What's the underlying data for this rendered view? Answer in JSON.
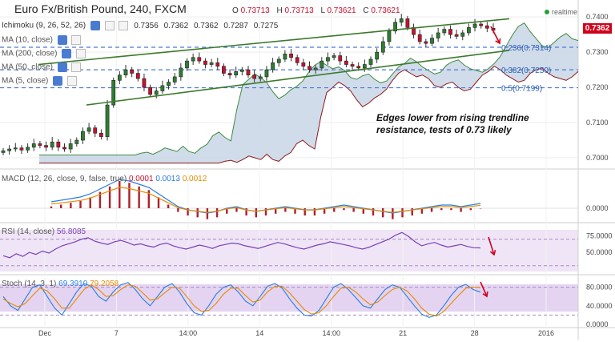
{
  "header": {
    "title": "Euro Fx/British Pound, 240, FXCM",
    "open_label": "O",
    "open": "0.73713",
    "high_label": "H",
    "high": "0.73713",
    "low_label": "L",
    "low": "0.73621",
    "close_label": "C",
    "close": "0.73621",
    "realtime_label": "realtime",
    "price_tag": "0.7362"
  },
  "indicators": {
    "ichimoku": {
      "label": "Ichimoku (9, 26, 52, 26)",
      "values": [
        "0.7356",
        "0.7362",
        "0.7362",
        "0.7287",
        "0.7275"
      ]
    },
    "ma10": "MA (10, close)",
    "ma200": "MA (200, close)",
    "ma50": "MA (50, close)",
    "ma5": "MA (5, close)"
  },
  "annotation": "Edges lower from rising trendline resistance, tests of 0.73 likely",
  "fib_levels": [
    {
      "label": "0.236(0.7314)",
      "value": 0.7314
    },
    {
      "label": "0.382(0.7250)",
      "value": 0.725
    },
    {
      "label": "0.5(0.7199)",
      "value": 0.7199
    }
  ],
  "macd": {
    "label": "MACD (12, 26, close, 9, false, true)",
    "v1": "0.0001",
    "v2": "0.0013",
    "v3": "0.0012"
  },
  "rsi": {
    "label": "RSI (14, close)",
    "value": "56.8085"
  },
  "stoch": {
    "label": "Stoch (14, 3, 1)",
    "k": "69.3910",
    "d": "79.2058"
  },
  "colors": {
    "up": "#2e7d32",
    "down": "#c8102e",
    "trend": "#3b7a2b",
    "macd": "#2a7de1",
    "signal": "#e68a00",
    "rsi": "#7a3fb5",
    "arrow": "#d0021b"
  },
  "chart_data": [
    {
      "type": "candlestick",
      "title": "Euro Fx/British Pound, 240, FXCM",
      "ylim": [
        0.6975,
        0.743
      ],
      "y_ticks": [
        "0.7400",
        "0.7300",
        "0.7200",
        "0.7100",
        "0.7000"
      ],
      "x_ticks": [
        "Dec",
        "7",
        "14:00",
        "14",
        "14:00",
        "21",
        "28",
        "2016"
      ],
      "close_series": [
        0.702,
        0.7025,
        0.7028,
        0.7022,
        0.703,
        0.704,
        0.7035,
        0.703,
        0.7045,
        0.703,
        0.7025,
        0.704,
        0.705,
        0.7075,
        0.7085,
        0.707,
        0.706,
        0.715,
        0.722,
        0.7235,
        0.725,
        0.724,
        0.7225,
        0.72,
        0.718,
        0.719,
        0.7205,
        0.7215,
        0.723,
        0.7255,
        0.7275,
        0.7285,
        0.7275,
        0.7265,
        0.727,
        0.726,
        0.724,
        0.7235,
        0.7245,
        0.725,
        0.7235,
        0.7225,
        0.723,
        0.725,
        0.727,
        0.728,
        0.7295,
        0.7285,
        0.727,
        0.726,
        0.725,
        0.7255,
        0.7275,
        0.7285,
        0.729,
        0.7275,
        0.7265,
        0.726,
        0.7255,
        0.7265,
        0.728,
        0.73,
        0.733,
        0.736,
        0.7385,
        0.7395,
        0.737,
        0.735,
        0.733,
        0.7325,
        0.734,
        0.7355,
        0.7365,
        0.735,
        0.7345,
        0.7355,
        0.737,
        0.738,
        0.7375,
        0.7368,
        0.7362
      ],
      "fib_levels": [
        0.7314,
        0.725,
        0.7199
      ],
      "trendline_upper": [
        [
          0.7265,
          0.7395
        ]
      ],
      "trendline_lower": [
        [
          0.715,
          0.7305
        ]
      ]
    },
    {
      "type": "macd",
      "title": "MACD (12, 26, close, 9, false, true)",
      "y_ticks": [
        "0.0000"
      ],
      "histogram": [
        0.0001,
        0.0002,
        0.0003,
        0.0004,
        0.0006,
        0.0009,
        0.0012,
        0.0015,
        0.0014,
        0.0012,
        0.001,
        0.0006,
        0.0002,
        -0.0002,
        -0.0004,
        -0.0005,
        -0.0006,
        -0.0005,
        -0.0003,
        -0.0002,
        -0.0004,
        -0.0005,
        -0.0004,
        -0.0003,
        -0.0002,
        -0.0003,
        -0.0004,
        -0.0004,
        -0.0003,
        -0.0002,
        -0.0001,
        -0.0002,
        -0.0003,
        -0.0004,
        -0.0005,
        -0.0006,
        -0.0005,
        -0.0004,
        -0.0003,
        -0.0002,
        -0.0001,
        -0.0001,
        -0.0002,
        -0.0001,
        0.0
      ],
      "macd": "0.0001",
      "signal": "0.0013",
      "hist": "0.0012"
    },
    {
      "type": "line",
      "title": "RSI (14, close)",
      "y_ticks": [
        "75.0000",
        "50.0000"
      ],
      "ylim": [
        20,
        90
      ],
      "values": [
        45,
        42,
        48,
        44,
        50,
        47,
        52,
        49,
        55,
        60,
        63,
        66,
        70,
        72,
        67,
        64,
        62,
        66,
        68,
        65,
        61,
        63,
        60,
        58,
        62,
        64,
        60,
        57,
        55,
        58,
        61,
        59,
        56,
        60,
        62,
        64,
        63,
        60,
        58,
        56,
        59,
        62,
        65,
        63,
        60,
        57,
        55,
        58,
        61,
        63,
        66,
        64,
        62,
        60,
        57,
        55,
        58,
        62,
        66,
        70,
        76,
        80,
        74,
        66,
        60,
        63,
        65,
        61,
        58,
        60,
        62,
        59,
        57,
        56.8
      ]
    },
    {
      "type": "line",
      "title": "Stoch (14, 3, 1)",
      "y_ticks": [
        "80.0000",
        "40.0000",
        "0.0000"
      ],
      "ylim": [
        0,
        100
      ],
      "k": [
        60,
        40,
        30,
        55,
        80,
        85,
        60,
        35,
        20,
        45,
        70,
        88,
        82,
        60,
        50,
        70,
        85,
        90,
        75,
        55,
        40,
        60,
        80,
        88,
        70,
        45,
        25,
        20,
        40,
        65,
        80,
        85,
        70,
        50,
        40,
        60,
        82,
        88,
        78,
        55,
        35,
        20,
        18,
        30,
        55,
        80,
        88,
        75,
        58,
        40,
        35,
        55,
        75,
        85,
        80,
        60,
        40,
        22,
        15,
        20,
        40,
        62,
        80,
        86,
        75,
        69.4
      ],
      "d": [
        55,
        45,
        38,
        45,
        62,
        78,
        72,
        55,
        35,
        35,
        55,
        75,
        85,
        75,
        60,
        62,
        75,
        85,
        82,
        68,
        52,
        55,
        68,
        80,
        78,
        60,
        40,
        28,
        30,
        45,
        65,
        78,
        78,
        62,
        48,
        52,
        70,
        82,
        82,
        68,
        50,
        32,
        22,
        25,
        40,
        60,
        78,
        80,
        70,
        55,
        42,
        48,
        62,
        75,
        80,
        72,
        55,
        35,
        22,
        18,
        28,
        45,
        62,
        78,
        80,
        79.2
      ]
    }
  ]
}
